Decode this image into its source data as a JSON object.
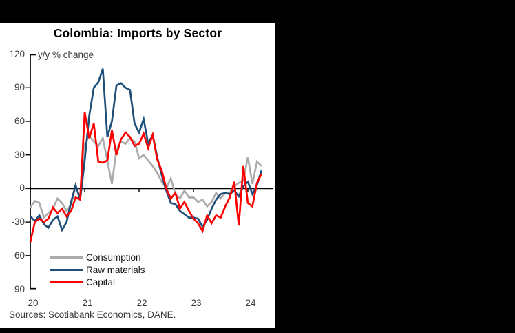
{
  "frame": {
    "background": "#000000",
    "panel_background": "#ffffff"
  },
  "chart_data": {
    "type": "line",
    "title": "Colombia: Imports by Sector",
    "annotation": "y/y % change",
    "x_start_year": 2020,
    "points_per_month": 1,
    "x_tick_labels": [
      "20",
      "21",
      "22",
      "23",
      "24"
    ],
    "y_ticks": [
      120,
      90,
      60,
      30,
      0,
      -30,
      -60,
      -90
    ],
    "ylim": [
      -90,
      120
    ],
    "grid": false,
    "legend_position": "inside-bottom-left",
    "series": [
      {
        "name": "Consumption",
        "color": "#ababab",
        "values": [
          -17,
          -11,
          -13,
          -26,
          -22,
          -18,
          -9,
          -13,
          -20,
          -14,
          2,
          -8,
          40,
          47,
          42,
          38,
          45,
          25,
          4,
          35,
          42,
          40,
          45,
          42,
          27,
          30,
          25,
          20,
          14,
          6,
          0,
          9,
          -5,
          -9,
          -2,
          -8,
          -8,
          -12,
          -10,
          -16,
          -12,
          -4,
          -9,
          -4,
          -4,
          2,
          5,
          7,
          28,
          4,
          24,
          20
        ]
      },
      {
        "name": "Raw materials",
        "color": "#1f4e79",
        "values": [
          -25,
          -29,
          -24,
          -32,
          -35,
          -28,
          -25,
          -37,
          -30,
          -12,
          3,
          -10,
          25,
          65,
          90,
          95,
          107,
          46,
          60,
          92,
          94,
          90,
          88,
          58,
          50,
          62,
          40,
          48,
          28,
          12,
          -2,
          -13,
          -14,
          -20,
          -23,
          -26,
          -26,
          -27,
          -34,
          -28,
          -18,
          -10,
          -5,
          -4,
          -5,
          -2,
          -7,
          2,
          6,
          -5,
          3,
          16
        ]
      },
      {
        "name": "Capital",
        "color": "#ff0000",
        "values": [
          -48,
          -30,
          -27,
          -30,
          -27,
          -17,
          -22,
          -18,
          -25,
          -20,
          -8,
          -10,
          68,
          45,
          58,
          24,
          23,
          25,
          52,
          30,
          44,
          50,
          46,
          38,
          40,
          49,
          36,
          48,
          26,
          16,
          0,
          -9,
          -4,
          -18,
          -12,
          -20,
          -27,
          -31,
          -38,
          -24,
          -31,
          -24,
          -26,
          -16,
          -8,
          6,
          -33,
          20,
          -13,
          -16,
          5,
          13
        ]
      }
    ],
    "source_note": "Sources: Scotiabank Economics, DANE."
  }
}
